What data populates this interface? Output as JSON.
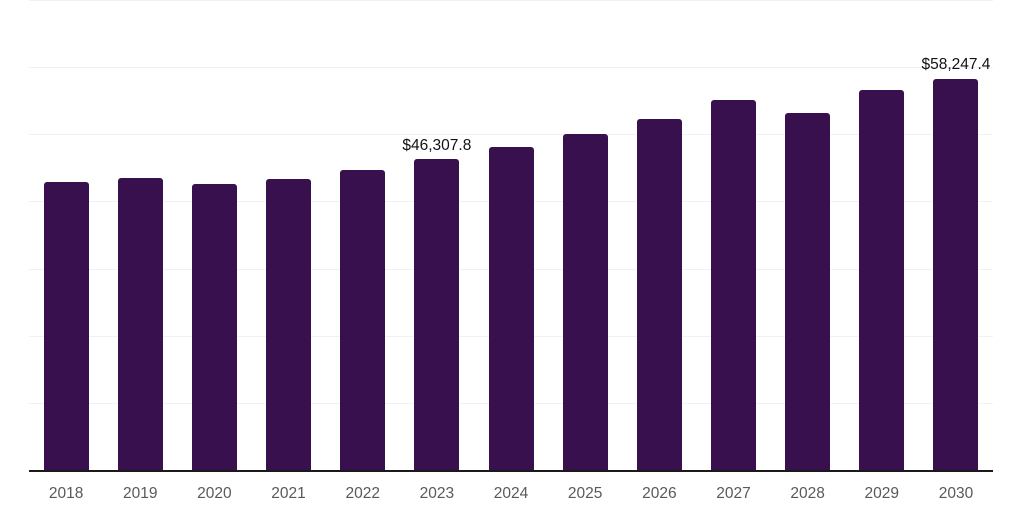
{
  "chart_data": {
    "type": "bar",
    "categories": [
      "2018",
      "2019",
      "2020",
      "2021",
      "2022",
      "2023",
      "2024",
      "2025",
      "2026",
      "2027",
      "2028",
      "2029",
      "2030"
    ],
    "values": [
      42950,
      43550,
      42600,
      43350,
      44650,
      46307.8,
      48050,
      50000,
      52300,
      55100,
      53100,
      56600,
      58247.4
    ],
    "data_labels": [
      "",
      "",
      "",
      "",
      "",
      "$46,307.8",
      "",
      "",
      "",
      "",
      "",
      "",
      "$58,247.4"
    ],
    "ylim": [
      0,
      70000
    ],
    "gridline_step": 10000,
    "grid": true,
    "colors": {
      "bar": "#37104d",
      "gridline": "#f1f1f2",
      "axis_line": "#1a1a1a",
      "tick_label": "#595959",
      "data_label": "#111111",
      "background": "#ffffff"
    }
  }
}
